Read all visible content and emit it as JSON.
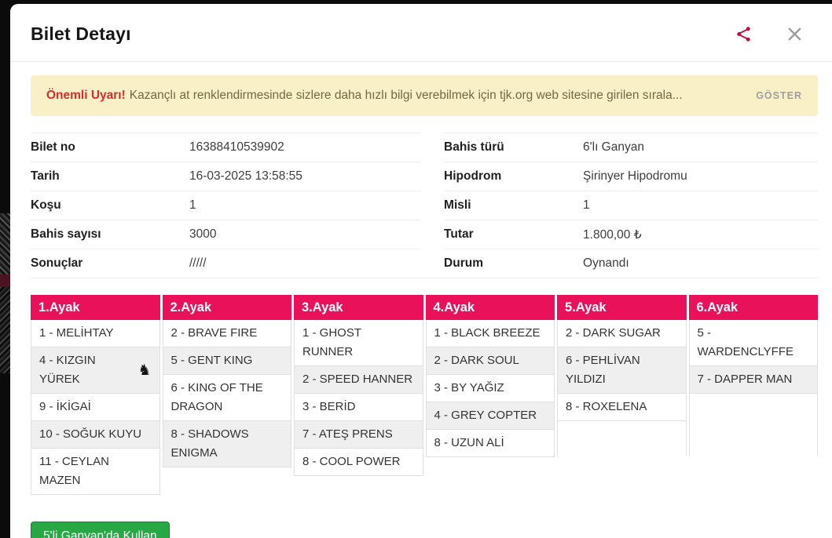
{
  "modal": {
    "title": "Bilet Detayı"
  },
  "icons": {
    "share": "share-icon",
    "close": "close-icon",
    "horse": "horse-icon",
    "horse_glyph": "♞"
  },
  "banner": {
    "title": "Önemli Uyarı!",
    "message": "Kazançlı at renklendirmesinde sizlere daha hızlı bilgi verebilmek için tjk.org web sitesine girilen sırala...",
    "action_label": "GÖSTER"
  },
  "details": {
    "left": [
      {
        "label": "Bilet no",
        "value": "16388410539902"
      },
      {
        "label": "Tarih",
        "value": "16-03-2025 13:58:55"
      },
      {
        "label": "Koşu",
        "value": "1"
      },
      {
        "label": "Bahis sayısı",
        "value": "3000"
      },
      {
        "label": "Sonuçlar",
        "value": "/////"
      }
    ],
    "right": [
      {
        "label": "Bahis türü",
        "value": "6'lı Ganyan"
      },
      {
        "label": "Hipodrom",
        "value": "Şirinyer Hipodromu"
      },
      {
        "label": "Misli",
        "value": "1"
      },
      {
        "label": "Tutar",
        "value": "1.800,00 ₺"
      },
      {
        "label": "Durum",
        "value": "Oynandı"
      }
    ]
  },
  "legs_table": {
    "columns": [
      {
        "header": "1.Ayak",
        "horses": [
          {
            "text": "1 - MELİHTAY"
          },
          {
            "text": "4 - KIZGIN YÜREK",
            "icon": "horse-icon"
          },
          {
            "text": "9 - İKİGAİ"
          },
          {
            "text": "10 - SOĞUK KUYU"
          },
          {
            "text": "11 - CEYLAN MAZEN"
          }
        ]
      },
      {
        "header": "2.Ayak",
        "horses": [
          {
            "text": "2 - BRAVE FIRE"
          },
          {
            "text": "5 - GENT KING"
          },
          {
            "text": "6 - KING OF THE DRAGON"
          },
          {
            "text": "8 - SHADOWS ENIGMA"
          }
        ]
      },
      {
        "header": "3.Ayak",
        "horses": [
          {
            "text": "1 - GHOST RUNNER"
          },
          {
            "text": "2 - SPEED HANNER"
          },
          {
            "text": "3 - BERİD"
          },
          {
            "text": "7 - ATEŞ PRENS"
          },
          {
            "text": "8 - COOL POWER"
          }
        ]
      },
      {
        "header": "4.Ayak",
        "horses": [
          {
            "text": "1 - BLACK BREEZE"
          },
          {
            "text": "2 - DARK SOUL"
          },
          {
            "text": "3 - BY YAĞIZ"
          },
          {
            "text": "4 - GREY COPTER"
          },
          {
            "text": "8 - UZUN ALİ"
          }
        ]
      },
      {
        "header": "5.Ayak",
        "horses": [
          {
            "text": "2 - DARK SUGAR"
          },
          {
            "text": "6 - PEHLİVAN YILDIZI"
          },
          {
            "text": "8 - ROXELENA"
          }
        ]
      },
      {
        "header": "6.Ayak",
        "horses": [
          {
            "text": "5 - WARDENCLYFFE"
          },
          {
            "text": "7 - DAPPER MAN"
          }
        ]
      }
    ]
  },
  "footer": {
    "use_button_label": "5'li Ganyan'da Kullan"
  },
  "colors": {
    "accent_pink": "#e9115a",
    "share_red": "#c2103c",
    "warning_red": "#d32f2f",
    "banner_bg": "#faf0c8",
    "success_green": "#28a745",
    "success_border": "#1e7e34",
    "row_alt": "#efefef"
  }
}
